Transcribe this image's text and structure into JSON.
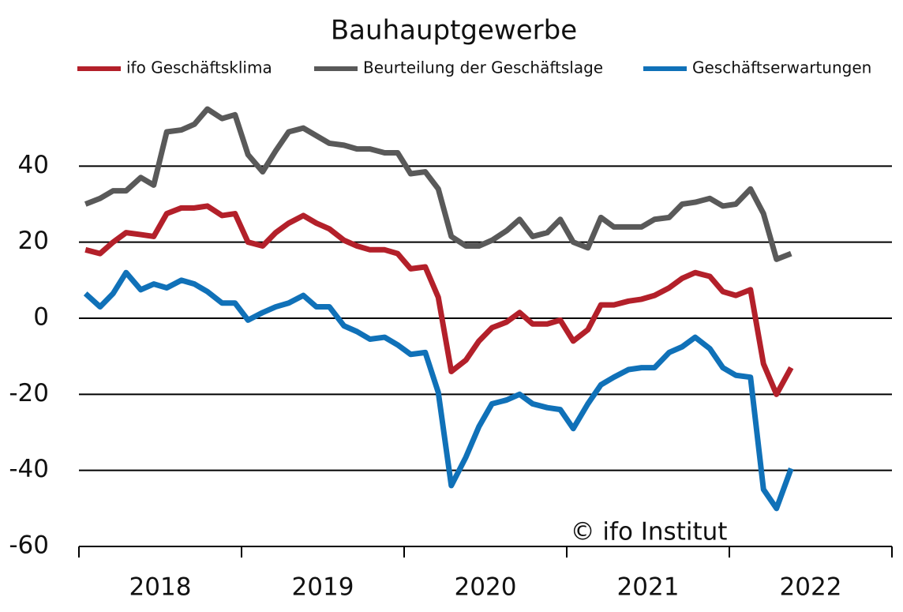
{
  "chart_data": {
    "type": "line",
    "title": "Bauhauptgewerbe",
    "annotation": "© ifo Institut",
    "categories": [
      "2018",
      "2019",
      "2020",
      "2021",
      "2022"
    ],
    "x": [
      2018.04,
      2018.13,
      2018.21,
      2018.29,
      2018.38,
      2018.46,
      2018.54,
      2018.63,
      2018.71,
      2018.79,
      2018.88,
      2018.96,
      2019.04,
      2019.13,
      2019.21,
      2019.29,
      2019.38,
      2019.46,
      2019.54,
      2019.63,
      2019.71,
      2019.79,
      2019.88,
      2019.96,
      2020.04,
      2020.13,
      2020.21,
      2020.29,
      2020.38,
      2020.46,
      2020.54,
      2020.63,
      2020.71,
      2020.79,
      2020.88,
      2020.96,
      2021.04,
      2021.13,
      2021.21,
      2021.29,
      2021.38,
      2021.46,
      2021.54,
      2021.63,
      2021.71,
      2021.79,
      2021.88,
      2021.96,
      2022.04,
      2022.13,
      2022.21,
      2022.29,
      2022.38
    ],
    "series": [
      {
        "name": "ifo Geschäftsklima",
        "color": "#b3202a",
        "values": [
          18,
          17,
          20,
          22.5,
          22,
          21.5,
          27.5,
          29,
          29,
          29.5,
          27,
          27.5,
          20,
          19,
          22.5,
          25,
          27,
          25,
          23.5,
          20.5,
          19,
          18,
          18,
          17,
          13,
          13.5,
          5.5,
          -14,
          -11,
          -6,
          -2.5,
          -1,
          1.5,
          -1.5,
          -1.5,
          -0.5,
          -6,
          -3,
          3.5,
          3.5,
          4.5,
          5,
          6,
          8,
          10.5,
          12,
          11,
          7,
          6,
          7.5,
          -12,
          -20,
          -13
        ]
      },
      {
        "name": "Beurteilung der Geschäftslage",
        "color": "#595959",
        "values": [
          30,
          31.5,
          33.5,
          33.5,
          37,
          35,
          49,
          49.5,
          51,
          55,
          52.5,
          53.5,
          43,
          38.5,
          44,
          49,
          50,
          48,
          46,
          45.5,
          44.5,
          44.5,
          43.5,
          43.5,
          38,
          38.5,
          34,
          21.5,
          19,
          19,
          20.5,
          23,
          26,
          21.5,
          22.5,
          26,
          20,
          18.5,
          26.5,
          24,
          24,
          24,
          26,
          26.5,
          30,
          30.5,
          31.5,
          29.5,
          30,
          34,
          27.5,
          15.5,
          17
        ]
      },
      {
        "name": "Geschäftserwartungen",
        "color": "#1071b8",
        "values": [
          6.5,
          3,
          6.5,
          12,
          7.5,
          9,
          8,
          10,
          9,
          7,
          4,
          4,
          -0.5,
          1.5,
          3,
          4,
          6,
          3,
          3,
          -2,
          -3.5,
          -5.5,
          -5,
          -7,
          -9.5,
          -9,
          -19.5,
          -44,
          -36.5,
          -28.5,
          -22.5,
          -21.5,
          -20,
          -22.5,
          -23.5,
          -24,
          -29,
          -22.5,
          -17.5,
          -15.5,
          -13.5,
          -13,
          -13,
          -9,
          -7.5,
          -5,
          -8,
          -13,
          -15,
          -15.5,
          -45,
          -50,
          -39.5
        ]
      }
    ],
    "xlim": [
      2018,
      2023
    ],
    "xticks": [
      2018,
      2019,
      2020,
      2021,
      2022,
      2023
    ],
    "ylim": [
      -60,
      60
    ],
    "yticks": [
      -60,
      -40,
      -20,
      0,
      20,
      40
    ],
    "grid": true
  }
}
